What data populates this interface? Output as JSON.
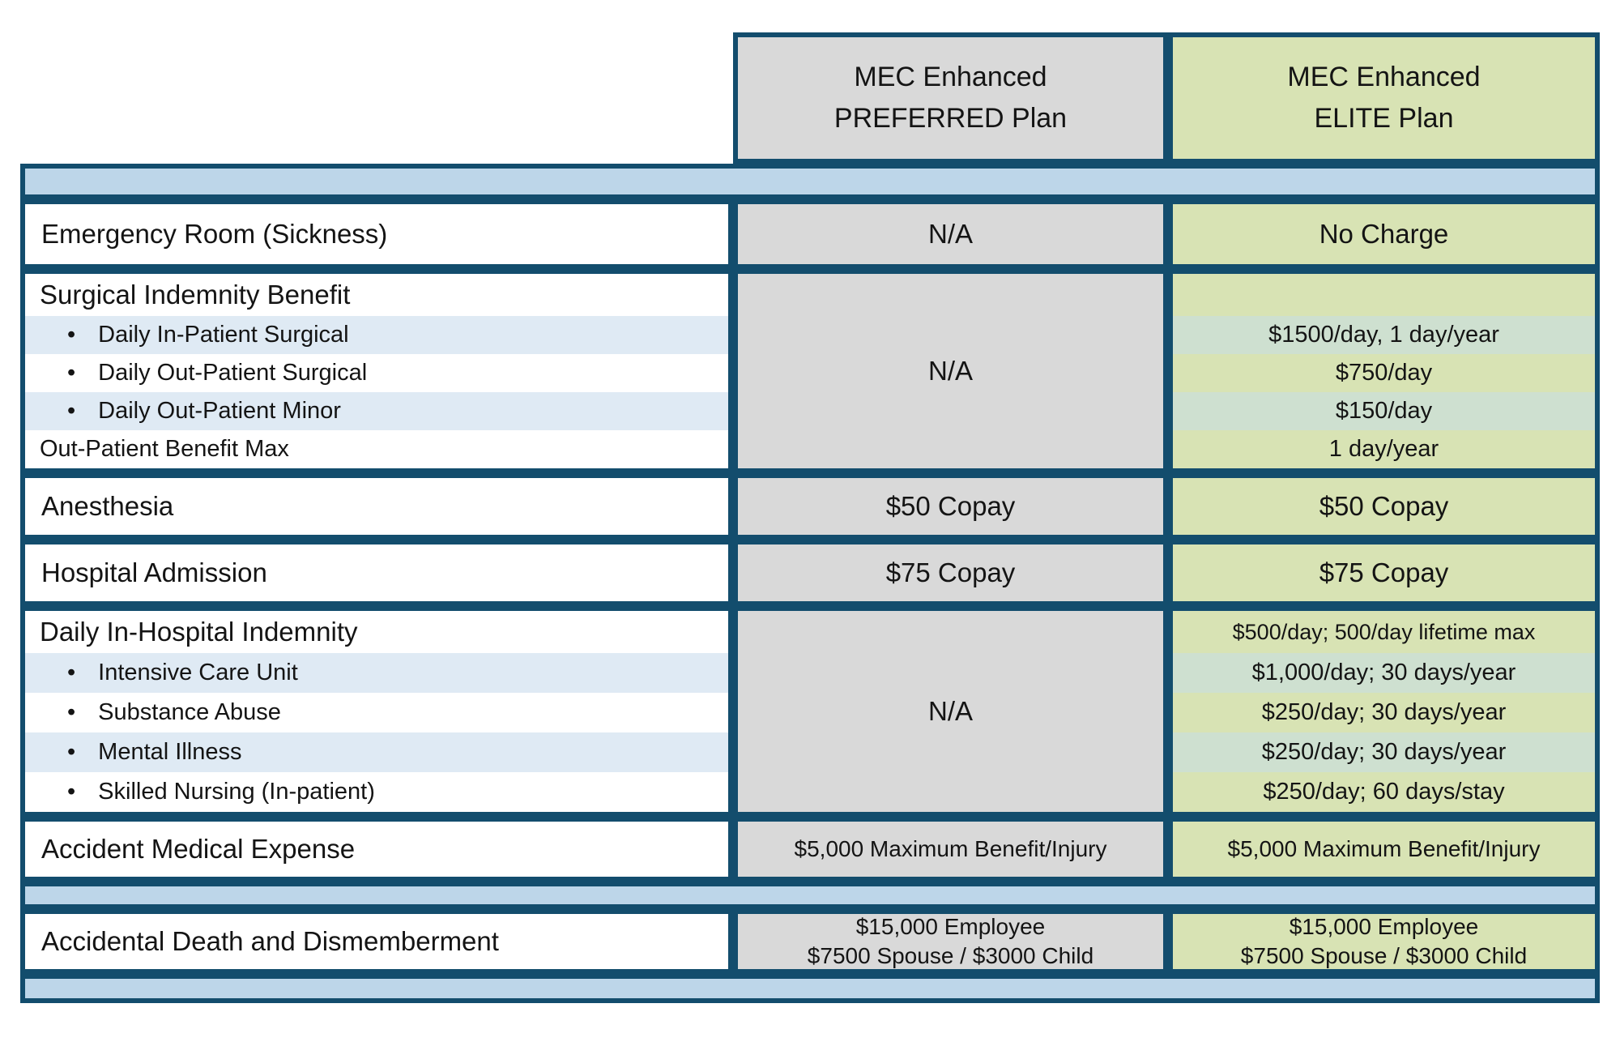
{
  "glyphs": {
    "bullet": "•"
  },
  "colors": {
    "navy_border": "#134d6d",
    "preferred_gray": "#d9d9d9",
    "elite_green": "#d8e3b4",
    "divider_band_blue": "#bdd6e9",
    "label_stripe_blue": "#dfeaf4",
    "elite_stripe_green": "#cee0d0"
  },
  "header": {
    "preferred": {
      "line1": "MEC Enhanced",
      "line2": "PREFERRED Plan"
    },
    "elite": {
      "line1": "MEC Enhanced",
      "line2": "ELITE Plan"
    }
  },
  "rows": [
    {
      "label": "Emergency Room (Sickness)",
      "preferred": "N/A",
      "elite": "No Charge"
    },
    {
      "label_title": "Surgical Indemnity Benefit",
      "label_items": [
        "Daily In-Patient Surgical",
        "Daily Out-Patient Surgical",
        "Daily Out-Patient Minor"
      ],
      "label_footer": "Out-Patient Benefit Max",
      "preferred": "N/A",
      "elite_lines": [
        "",
        "$1500/day, 1 day/year",
        "$750/day",
        "$150/day",
        "1 day/year"
      ]
    },
    {
      "label": "Anesthesia",
      "preferred": "$50 Copay",
      "elite": "$50 Copay"
    },
    {
      "label": "Hospital Admission",
      "preferred": "$75 Copay",
      "elite": "$75 Copay"
    },
    {
      "label_title": "Daily In-Hospital Indemnity",
      "label_items": [
        "Intensive Care Unit",
        "Substance Abuse",
        "Mental Illness",
        "Skilled Nursing (In-patient)"
      ],
      "preferred": "N/A",
      "elite_lines": [
        "$500/day; 500/day lifetime max",
        "$1,000/day; 30 days/year",
        "$250/day; 30 days/year",
        "$250/day; 30 days/year",
        "$250/day; 60 days/stay"
      ]
    },
    {
      "label": "Accident Medical Expense",
      "preferred": "$5,000 Maximum Benefit/Injury",
      "elite": "$5,000 Maximum Benefit/Injury"
    },
    {
      "label": "Accidental Death and Dismemberment",
      "preferred_lines": [
        "$15,000 Employee",
        "$7500 Spouse / $3000 Child"
      ],
      "elite_lines": [
        "$15,000 Employee",
        "$7500 Spouse / $3000 Child"
      ]
    }
  ]
}
